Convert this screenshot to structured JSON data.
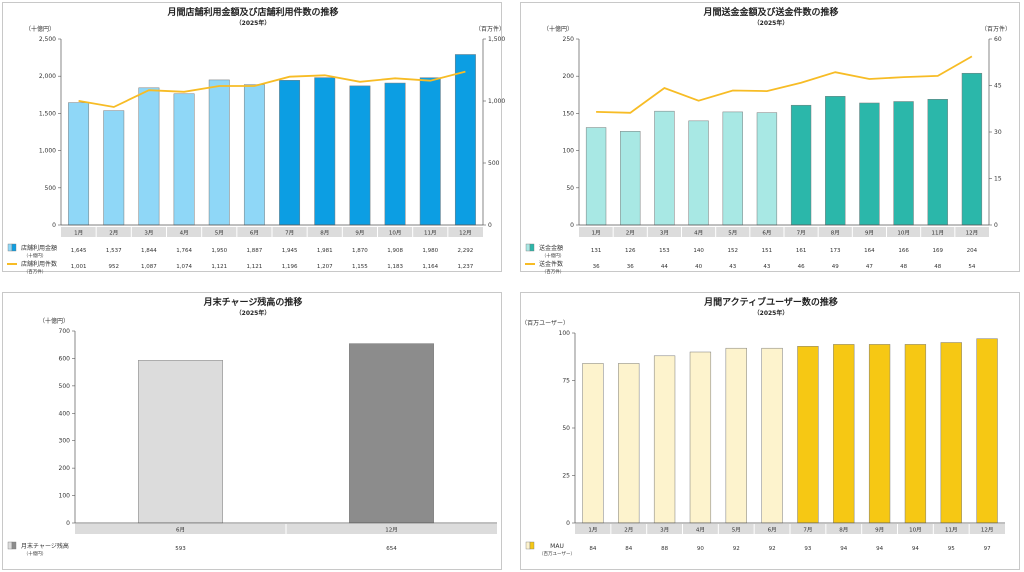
{
  "chart_data": [
    {
      "type": "bar",
      "title": "月間店舗利用金額及び店舗利用件数の推移",
      "subtitle": "（2025年）",
      "ylabel": "（十億円）",
      "y2label": "（百万件）",
      "ylim": [
        0,
        2500
      ],
      "yticks": [
        0,
        500,
        1000,
        1500,
        2000,
        2500
      ],
      "y2lim": [
        0,
        1500
      ],
      "y2ticks": [
        0,
        500,
        1000,
        1500
      ],
      "categories": [
        "1月",
        "2月",
        "3月",
        "4月",
        "5月",
        "6月",
        "7月",
        "8月",
        "9月",
        "10月",
        "11月",
        "12月"
      ],
      "series": [
        {
          "name": "店舗利用金額",
          "unit": "（十億円）",
          "kind": "bar",
          "values": [
            1645,
            1537,
            1844,
            1764,
            1950,
            1887,
            1945,
            1981,
            1870,
            1908,
            1980,
            2292
          ],
          "value_labels": [
            "1,645",
            "1,537",
            "1,844",
            "1,764",
            "1,950",
            "1,887",
            "1,945",
            "1,981",
            "1,870",
            "1,908",
            "1,980",
            "2,292"
          ],
          "color_light": "#8fd7f7",
          "color_dark": "#0c9ee3",
          "light_count": 6
        },
        {
          "name": "店舗利用件数",
          "unit": "（百万件）",
          "kind": "line",
          "axis": "right",
          "values": [
            1001,
            952,
            1087,
            1074,
            1121,
            1121,
            1196,
            1207,
            1155,
            1183,
            1164,
            1237
          ],
          "value_labels": [
            "1,001",
            "952",
            "1,087",
            "1,074",
            "1,121",
            "1,121",
            "1,196",
            "1,207",
            "1,155",
            "1,183",
            "1,164",
            "1,237"
          ],
          "color": "#f7bc25"
        }
      ]
    },
    {
      "type": "bar",
      "title": "月間送金金額及び送金件数の推移",
      "subtitle": "（2025年）",
      "ylabel": "（十億円）",
      "y2label": "（百万件）",
      "ylim": [
        0,
        250
      ],
      "yticks": [
        0,
        50,
        100,
        150,
        200,
        250
      ],
      "y2lim": [
        0,
        60
      ],
      "y2ticks": [
        0,
        15,
        30,
        45,
        60
      ],
      "categories": [
        "1月",
        "2月",
        "3月",
        "4月",
        "5月",
        "6月",
        "7月",
        "8月",
        "9月",
        "10月",
        "11月",
        "12月"
      ],
      "series": [
        {
          "name": "送金金額",
          "unit": "（十億円）",
          "kind": "bar",
          "values": [
            131,
            126,
            153,
            140,
            152,
            151,
            161,
            173,
            164,
            166,
            169,
            204
          ],
          "value_labels": [
            "131",
            "126",
            "153",
            "140",
            "152",
            "151",
            "161",
            "173",
            "164",
            "166",
            "169",
            "204"
          ],
          "color_light": "#a8e8e4",
          "color_dark": "#2bb7aa",
          "light_count": 6
        },
        {
          "name": "送金件数",
          "unit": "（百万件）",
          "kind": "line",
          "axis": "right",
          "values": [
            36.5,
            36.2,
            44.2,
            40.1,
            43.4,
            43.2,
            45.9,
            49.3,
            47.1,
            47.7,
            48.1,
            54.4
          ],
          "value_labels": [
            "36",
            "36",
            "44",
            "40",
            "43",
            "43",
            "46",
            "49",
            "47",
            "48",
            "48",
            "54"
          ],
          "color": "#f7bc25"
        }
      ]
    },
    {
      "type": "bar",
      "title": "月末チャージ残高の推移",
      "subtitle": "（2025年）",
      "ylabel": "（十億円）",
      "ylim": [
        0,
        700
      ],
      "yticks": [
        0,
        100,
        200,
        300,
        400,
        500,
        600,
        700
      ],
      "categories": [
        "6月",
        "12月"
      ],
      "series": [
        {
          "name": "月末チャージ残高",
          "unit": "（十億円）",
          "kind": "bar",
          "values": [
            593,
            654
          ],
          "value_labels": [
            "593",
            "654"
          ],
          "color_light": "#dcdcdc",
          "color_dark": "#8c8c8c",
          "light_count": 1
        }
      ]
    },
    {
      "type": "bar",
      "title": "月間アクティブユーザー数の推移",
      "subtitle": "（2025年）",
      "ylabel": "（百万ユーザー）",
      "ylim": [
        0,
        100
      ],
      "yticks": [
        0,
        25,
        50,
        75,
        100
      ],
      "categories": [
        "1月",
        "2月",
        "3月",
        "4月",
        "5月",
        "6月",
        "7月",
        "8月",
        "9月",
        "10月",
        "11月",
        "12月"
      ],
      "series": [
        {
          "name": "MAU",
          "unit": "（百万ユーザー）",
          "kind": "bar",
          "values": [
            84,
            84,
            88,
            90,
            92,
            92,
            93,
            94,
            94,
            94,
            95,
            97
          ],
          "value_labels": [
            "84",
            "84",
            "88",
            "90",
            "92",
            "92",
            "93",
            "94",
            "94",
            "94",
            "95",
            "97"
          ],
          "color_light": "#fdf3cd",
          "color_dark": "#f6c814",
          "light_count": 6
        }
      ]
    }
  ]
}
